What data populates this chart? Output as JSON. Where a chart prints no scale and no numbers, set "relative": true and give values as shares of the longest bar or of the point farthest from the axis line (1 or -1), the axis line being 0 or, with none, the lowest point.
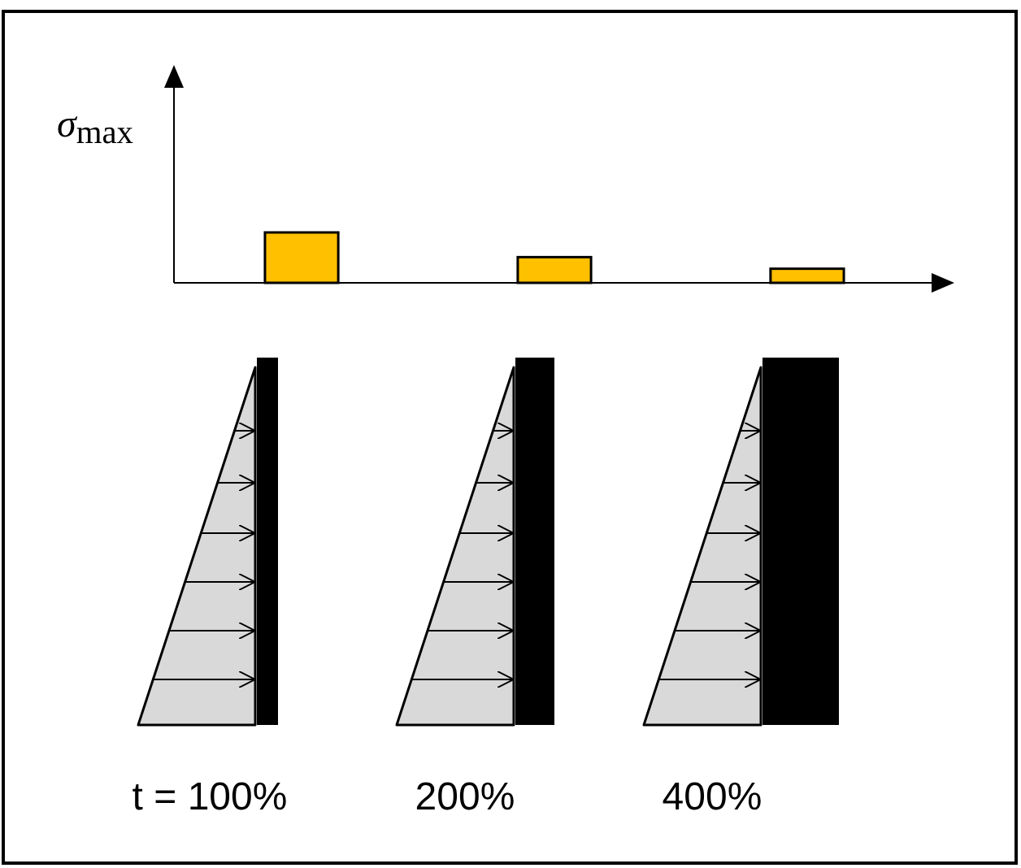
{
  "chart_data": {
    "type": "bar",
    "relative": true,
    "ylabel": "σ$_{max}$",
    "categories": [
      "t = 100%",
      "200%",
      "400%"
    ],
    "values": [
      1,
      0.51,
      0.28
    ],
    "color": "#ffc000"
  }
}
